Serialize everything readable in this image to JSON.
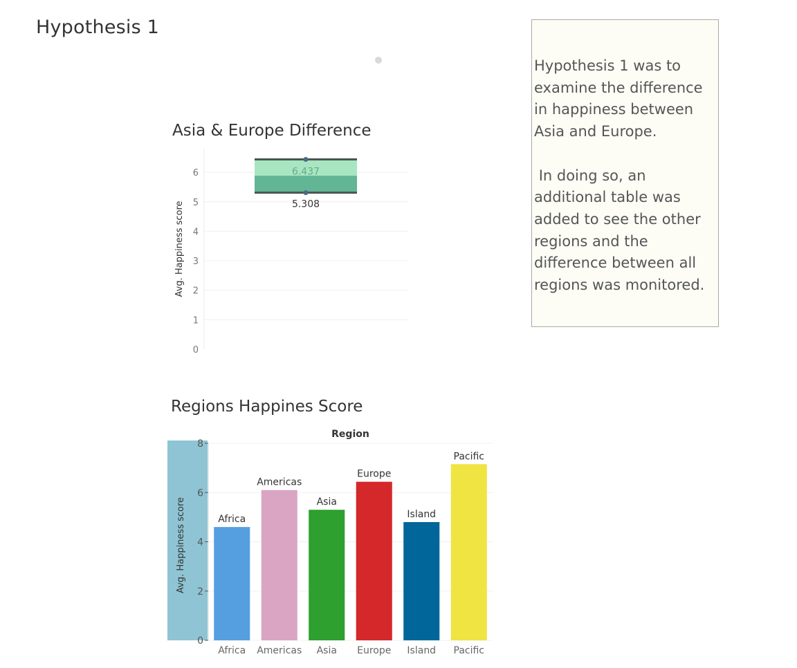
{
  "page": {
    "title": "Hypothesis 1"
  },
  "note": {
    "text": "Hypothesis 1 was to examine the difference in happiness between Asia and Europe.\n\n In doing so, an additional table was added to see the other regions and the difference between all regions was monitored."
  },
  "chart_data": [
    {
      "type": "bar",
      "title": "Asia & Europe Difference",
      "ylabel": "Avg. Happiness score",
      "ylim": [
        0,
        6.8
      ],
      "yticks": [
        "0",
        "1",
        "2",
        "3",
        "4",
        "5",
        "6"
      ],
      "low": 5.308,
      "high": 6.437,
      "low_label": "5.308",
      "high_label": "6.437",
      "colors": {
        "upper_band": "#a7e6c0",
        "lower_band": "#62b695",
        "rule": "#4a554f",
        "dot": "#4e6a86"
      },
      "grid": true
    },
    {
      "type": "bar",
      "title": "Regions Happines Score",
      "xlabel": "Region",
      "ylabel": "Avg. Happiness score",
      "ylim": [
        0,
        8
      ],
      "yticks": [
        "0",
        "2",
        "4",
        "6",
        "8"
      ],
      "categories": [
        "Africa",
        "Americas",
        "Asia",
        "Europe",
        "Island",
        "Pacific"
      ],
      "values": [
        4.6,
        6.1,
        5.3,
        6.437,
        4.8,
        7.15
      ],
      "colors": [
        "#559ee0",
        "#d9a5c2",
        "#2da02f",
        "#d4282a",
        "#016699",
        "#efe442"
      ],
      "axis_band_color": "#8ec4d4",
      "grid": true
    }
  ]
}
